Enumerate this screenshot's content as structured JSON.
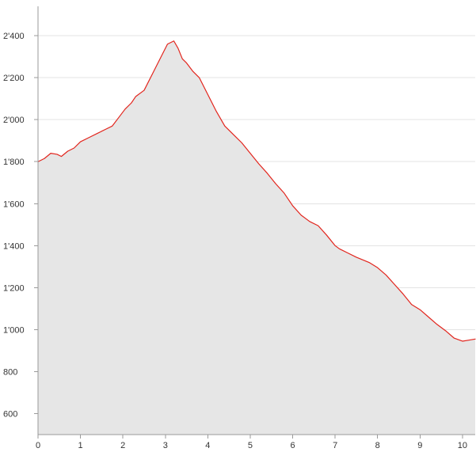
{
  "chart_data": {
    "type": "area",
    "title": "",
    "xlabel": "",
    "ylabel": "",
    "xlim": [
      0,
      10.3
    ],
    "ylim": [
      500,
      2540
    ],
    "grid": true,
    "legend": "none",
    "colors": {
      "line": "#e2251d",
      "fill": "#e6e6e6",
      "grid": "#e3e3e3",
      "axis": "#9a9a9a"
    },
    "x_ticks": [
      {
        "value": 0,
        "label": "0"
      },
      {
        "value": 1,
        "label": "1"
      },
      {
        "value": 2,
        "label": "2"
      },
      {
        "value": 3,
        "label": "3"
      },
      {
        "value": 4,
        "label": "4"
      },
      {
        "value": 5,
        "label": "5"
      },
      {
        "value": 6,
        "label": "6"
      },
      {
        "value": 7,
        "label": "7"
      },
      {
        "value": 8,
        "label": "8"
      },
      {
        "value": 9,
        "label": "9"
      },
      {
        "value": 10,
        "label": "10"
      }
    ],
    "y_ticks": [
      {
        "value": 600,
        "label": "600"
      },
      {
        "value": 800,
        "label": "800"
      },
      {
        "value": 1000,
        "label": "1'000"
      },
      {
        "value": 1200,
        "label": "1'200"
      },
      {
        "value": 1400,
        "label": "1'400"
      },
      {
        "value": 1600,
        "label": "1'600"
      },
      {
        "value": 1800,
        "label": "1'800"
      },
      {
        "value": 2000,
        "label": "2'000"
      },
      {
        "value": 2200,
        "label": "2'200"
      },
      {
        "value": 2400,
        "label": "2'400"
      }
    ],
    "series": [
      {
        "x": [
          0,
          0.15,
          0.3,
          0.45,
          0.55,
          0.7,
          0.85,
          1.0,
          1.2,
          1.4,
          1.6,
          1.75,
          1.9,
          2.05,
          2.2,
          2.3,
          2.5,
          2.7,
          2.9,
          3.05,
          3.2,
          3.3,
          3.4,
          3.5,
          3.65,
          3.8,
          4.0,
          4.2,
          4.4,
          4.6,
          4.8,
          5.0,
          5.2,
          5.4,
          5.6,
          5.8,
          6.0,
          6.2,
          6.4,
          6.6,
          6.8,
          7.0,
          7.1,
          7.3,
          7.5,
          7.8,
          8.0,
          8.2,
          8.4,
          8.6,
          8.8,
          9.0,
          9.2,
          9.4,
          9.6,
          9.8,
          10.0,
          10.15,
          10.3
        ],
        "y": [
          1800,
          1815,
          1840,
          1835,
          1825,
          1850,
          1865,
          1895,
          1915,
          1935,
          1955,
          1970,
          2010,
          2050,
          2080,
          2110,
          2140,
          2220,
          2300,
          2360,
          2375,
          2340,
          2290,
          2270,
          2230,
          2200,
          2120,
          2040,
          1970,
          1930,
          1890,
          1840,
          1790,
          1745,
          1695,
          1650,
          1590,
          1545,
          1515,
          1495,
          1450,
          1400,
          1385,
          1365,
          1345,
          1320,
          1295,
          1260,
          1215,
          1170,
          1120,
          1095,
          1060,
          1025,
          995,
          960,
          945,
          950,
          955
        ]
      }
    ]
  }
}
